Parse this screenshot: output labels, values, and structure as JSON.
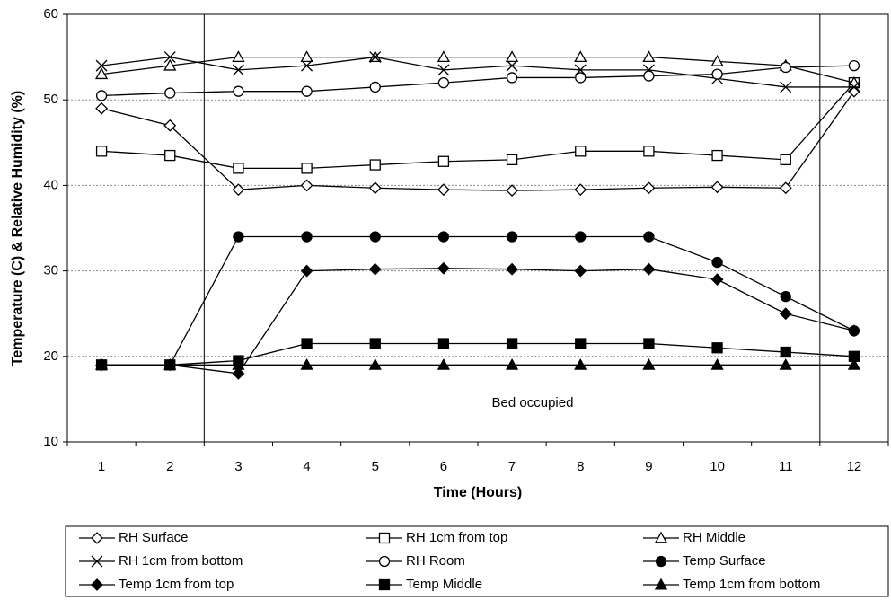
{
  "chart_data": {
    "type": "line",
    "x_label": "Time (Hours)",
    "y_label": "Temperature (C) & Relative Humidity (%)",
    "annotation": "Bed occupied",
    "categories": [
      "1",
      "2",
      "3",
      "4",
      "5",
      "6",
      "7",
      "8",
      "9",
      "10",
      "11",
      "12"
    ],
    "ylim": [
      10,
      60
    ],
    "yticks": [
      10,
      20,
      30,
      40,
      50,
      60
    ],
    "grid": true,
    "series": [
      {
        "name": "RH Surface",
        "color": "#000000",
        "marker": "diamond",
        "filled": false,
        "values": [
          49,
          47,
          39.5,
          40,
          39.7,
          39.5,
          39.4,
          39.5,
          39.7,
          39.8,
          39.7,
          51
        ]
      },
      {
        "name": "RH 1cm from top",
        "color": "#000000",
        "marker": "square",
        "filled": false,
        "values": [
          44,
          43.5,
          42,
          42,
          42.4,
          42.8,
          43,
          44,
          44,
          43.5,
          43,
          52
        ]
      },
      {
        "name": "RH Middle",
        "color": "#000000",
        "marker": "triangle",
        "filled": false,
        "values": [
          53,
          54,
          55,
          55,
          55,
          55,
          55,
          55,
          55,
          54.5,
          54,
          52
        ]
      },
      {
        "name": "RH 1cm from bottom",
        "color": "#000000",
        "marker": "x",
        "filled": false,
        "values": [
          54,
          55,
          53.5,
          54,
          55,
          53.5,
          54,
          53.5,
          53.5,
          52.5,
          51.5,
          51.5
        ]
      },
      {
        "name": "RH Room",
        "color": "#000000",
        "marker": "circle",
        "filled": false,
        "values": [
          50.5,
          50.8,
          51,
          51,
          51.5,
          52,
          52.6,
          52.6,
          52.8,
          53,
          53.8,
          54
        ]
      },
      {
        "name": "Temp Surface",
        "color": "#000000",
        "marker": "circle",
        "filled": true,
        "values": [
          19,
          19,
          34,
          34,
          34,
          34,
          34,
          34,
          34,
          31,
          27,
          23
        ]
      },
      {
        "name": "Temp 1cm from top",
        "color": "#000000",
        "marker": "diamond",
        "filled": true,
        "values": [
          19,
          19,
          18,
          30,
          30.2,
          30.3,
          30.2,
          30,
          30.2,
          29,
          25,
          23
        ]
      },
      {
        "name": "Temp Middle",
        "color": "#000000",
        "marker": "square",
        "filled": true,
        "values": [
          19,
          19,
          19.5,
          21.5,
          21.5,
          21.5,
          21.5,
          21.5,
          21.5,
          21,
          20.5,
          20
        ]
      },
      {
        "name": "Temp 1cm from bottom",
        "color": "#000000",
        "marker": "triangle",
        "filled": true,
        "values": [
          19,
          19,
          19,
          19,
          19,
          19,
          19,
          19,
          19,
          19,
          19,
          19
        ]
      }
    ]
  }
}
